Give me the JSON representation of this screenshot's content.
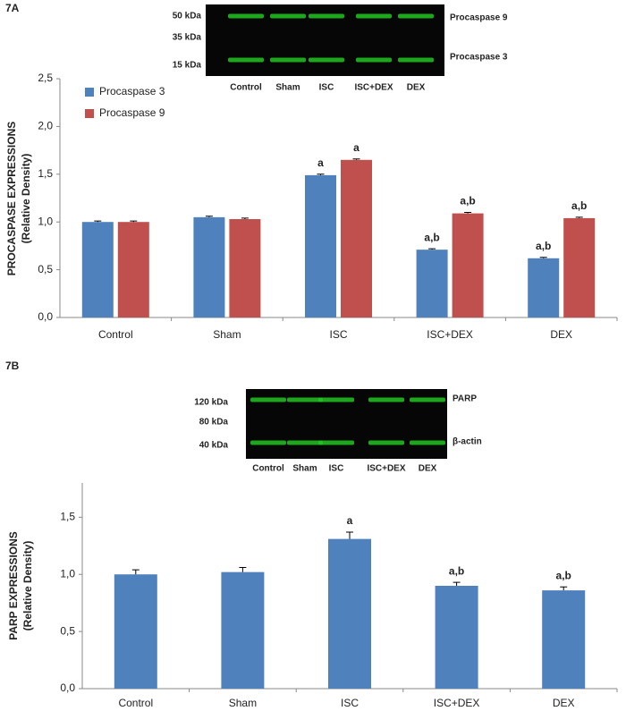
{
  "chart_data": [
    {
      "type": "bar",
      "panel": "7A",
      "ylabel": [
        "PROCASPASE EXPRESSIONS",
        "(Relative Density)"
      ],
      "categories": [
        "Control",
        "Sham",
        "ISC",
        "ISC+DEX",
        "DEX"
      ],
      "series": [
        {
          "name": "Procaspase 3",
          "color": "#4f81bd",
          "values": [
            1.0,
            1.05,
            1.49,
            0.71,
            0.62
          ],
          "errors": [
            0.01,
            0.01,
            0.01,
            0.01,
            0.01
          ],
          "annotations": [
            null,
            null,
            "a",
            "a,b",
            "a,b"
          ]
        },
        {
          "name": "Procaspase 9",
          "color": "#c0504d",
          "values": [
            1.0,
            1.03,
            1.65,
            1.09,
            1.04
          ],
          "errors": [
            0.01,
            0.01,
            0.01,
            0.01,
            0.01
          ],
          "annotations": [
            null,
            null,
            "a",
            "a,b",
            "a,b"
          ]
        }
      ],
      "ylim": [
        0,
        2.5
      ],
      "yticks": [
        {
          "value": 0,
          "label": "0,0"
        },
        {
          "value": 0.5,
          "label": "0,5"
        },
        {
          "value": 1,
          "label": "1,0"
        },
        {
          "value": 1.5,
          "label": "1,5"
        },
        {
          "value": 2,
          "label": "2,0"
        },
        {
          "value": 2.5,
          "label": "2,5"
        }
      ],
      "legend": "upper-left",
      "blot_markers": [
        "50 kDa",
        "35 kDa",
        "15 kDa"
      ],
      "blot_bands": [
        "Procaspase 9",
        "Procaspase 3"
      ],
      "blot_lanes": [
        "Control",
        "Sham",
        "ISC",
        "ISC+DEX",
        "DEX"
      ]
    },
    {
      "type": "bar",
      "panel": "7B",
      "ylabel": [
        "PARP EXPRESSIONS",
        "(Relative Density)"
      ],
      "categories": [
        "Control",
        "Sham",
        "ISC",
        "ISC+DEX",
        "DEX"
      ],
      "color": "#4f81bd",
      "values": [
        1.0,
        1.02,
        1.31,
        0.9,
        0.86
      ],
      "errors": [
        0.04,
        0.04,
        0.06,
        0.03,
        0.03
      ],
      "annotations": [
        null,
        null,
        "a",
        "a,b",
        "a,b"
      ],
      "ylim": [
        0,
        1.8
      ],
      "yticks": [
        {
          "value": 0,
          "label": "0,0"
        },
        {
          "value": 0.5,
          "label": "0,5"
        },
        {
          "value": 1,
          "label": "1,0"
        },
        {
          "value": 1.5,
          "label": "1,5"
        }
      ],
      "blot_markers": [
        "120 kDa",
        "80 kDa",
        "40 kDa"
      ],
      "blot_bands": [
        "PARP",
        "β-actin"
      ],
      "blot_lanes": [
        "Control",
        "Sham",
        "ISC",
        "ISC+DEX",
        "DEX"
      ]
    }
  ]
}
